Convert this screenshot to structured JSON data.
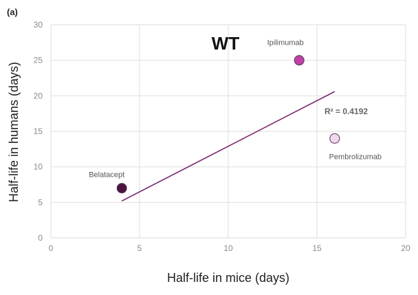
{
  "chart_data": {
    "type": "scatter",
    "panel_label": "(a)",
    "title": "WT",
    "xlabel": "Half-life in mice (days)",
    "ylabel": "Half-life in humans (days)",
    "xlim": [
      0,
      20
    ],
    "ylim": [
      0,
      30
    ],
    "xticks": [
      0,
      5,
      10,
      15,
      20
    ],
    "yticks": [
      0,
      5,
      10,
      15,
      20,
      25,
      30
    ],
    "grid": true,
    "points": [
      {
        "label": "Belatacept",
        "x": 4,
        "y": 7,
        "color": "#4a1440"
      },
      {
        "label": "Ipilimumab",
        "x": 14,
        "y": 25,
        "color": "#c040a8"
      },
      {
        "label": "Pembrolizumab",
        "x": 16,
        "y": 14,
        "color": "#f2d8ec"
      }
    ],
    "trendline": {
      "x": [
        4,
        16
      ],
      "y": [
        5.2,
        20.6
      ],
      "color": "#7a2a6e",
      "annotation": "R² = 0.4192"
    }
  }
}
